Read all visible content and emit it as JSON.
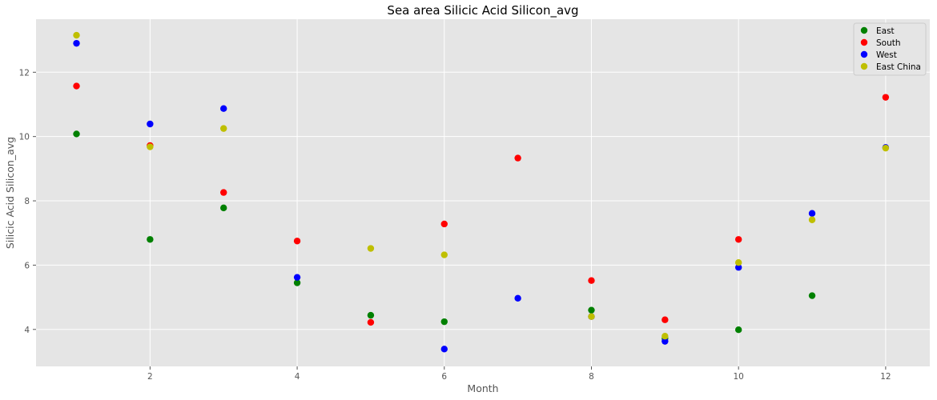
{
  "chart_data": {
    "type": "scatter",
    "title": "Sea area Silicic Acid Silicon_avg",
    "xlabel": "Month",
    "ylabel": "Silicic Acid Silicon_avg",
    "xlim": [
      0.45,
      12.6
    ],
    "ylim": [
      2.85,
      13.65
    ],
    "xticks": [
      2,
      4,
      6,
      8,
      10,
      12
    ],
    "yticks": [
      4,
      6,
      8,
      10,
      12
    ],
    "grid": true,
    "legend_position": "top-right",
    "style": "ggplot",
    "series": [
      {
        "name": "East",
        "color": "#008000",
        "x": [
          1,
          2,
          3,
          4,
          5,
          6,
          8,
          9,
          10,
          11
        ],
        "y": [
          10.08,
          6.8,
          7.78,
          5.45,
          4.44,
          4.24,
          4.6,
          3.72,
          3.99,
          5.05
        ]
      },
      {
        "name": "South",
        "color": "#ff0000",
        "x": [
          1,
          2,
          3,
          4,
          5,
          6,
          7,
          8,
          9,
          10,
          12
        ],
        "y": [
          11.57,
          9.72,
          8.26,
          6.75,
          4.22,
          7.28,
          9.33,
          5.52,
          4.3,
          6.8,
          11.22
        ]
      },
      {
        "name": "West",
        "color": "#0000ff",
        "x": [
          1,
          2,
          3,
          4,
          6,
          7,
          8,
          9,
          10,
          11,
          12
        ],
        "y": [
          12.9,
          10.39,
          10.87,
          5.62,
          3.39,
          4.97,
          4.4,
          3.63,
          5.93,
          7.61,
          9.66
        ]
      },
      {
        "name": "East China",
        "color": "#bfbf00",
        "x": [
          1,
          2,
          3,
          5,
          6,
          8,
          9,
          10,
          11,
          12
        ],
        "y": [
          13.15,
          9.68,
          10.25,
          6.52,
          6.32,
          4.4,
          3.79,
          6.08,
          7.41,
          9.64
        ]
      }
    ]
  }
}
